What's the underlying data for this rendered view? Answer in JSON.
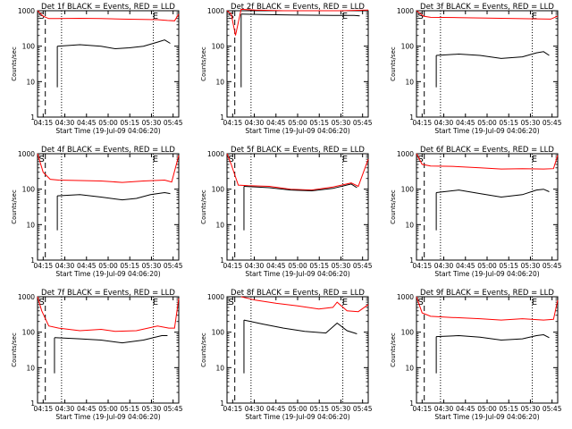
{
  "colors": {
    "events": "#000000",
    "lld": "#ff0000",
    "axis": "#000000",
    "background": "#ffffff"
  },
  "chart_data": [
    {
      "type": "line",
      "title": "Det 1f BLACK = Events, RED = LLD",
      "xlabel": "Start Time (19-Jul-09 04:06:20)",
      "ylabel": "Counts/sec",
      "yscale": "log",
      "ylim": [
        1,
        1000
      ],
      "xticks": [
        "04:15",
        "04:30",
        "04:45",
        "05:00",
        "05:15",
        "05:30",
        "05:45"
      ],
      "yticks": [
        "1",
        "10",
        "100",
        "1000"
      ],
      "markers": [
        "S",
        "E"
      ],
      "series": [
        {
          "name": "LLD",
          "color": "#ff0000",
          "x": [
            0,
            0.04,
            0.08,
            0.14,
            0.3,
            0.45,
            0.6,
            0.75,
            0.85,
            0.92,
            0.97,
            1.0
          ],
          "y": [
            1000,
            700,
            600,
            600,
            610,
            600,
            580,
            570,
            560,
            530,
            520,
            800
          ]
        },
        {
          "name": "Events",
          "color": "#000000",
          "x": [
            0.14,
            0.3,
            0.45,
            0.55,
            0.65,
            0.75,
            0.85,
            0.9,
            0.94
          ],
          "y": [
            100,
            110,
            100,
            85,
            90,
            100,
            130,
            150,
            120
          ]
        }
      ]
    },
    {
      "type": "line",
      "title": "Det 2f BLACK = Events, RED = LLD",
      "xlabel": "Start Time (19-Jul-09 04:06:20)",
      "ylabel": "Counts/sec",
      "yscale": "log",
      "ylim": [
        1,
        1000
      ],
      "xticks": [
        "04:15",
        "04:30",
        "04:45",
        "05:00",
        "05:15",
        "05:30",
        "05:45"
      ],
      "yticks": [
        "1",
        "10",
        "100",
        "1000"
      ],
      "markers": [
        "S",
        "E"
      ],
      "series": [
        {
          "name": "LLD",
          "color": "#ff0000",
          "x": [
            0,
            0.03,
            0.06,
            0.1,
            0.2,
            0.4,
            0.6,
            0.8,
            1.0
          ],
          "y": [
            1000,
            800,
            200,
            1100,
            1050,
            1000,
            1000,
            1000,
            1050
          ]
        },
        {
          "name": "Events",
          "color": "#000000",
          "x": [
            0.1,
            0.25,
            0.45,
            0.6,
            0.75,
            0.9,
            0.94
          ],
          "y": [
            800,
            780,
            760,
            750,
            740,
            740,
            720
          ]
        }
      ]
    },
    {
      "type": "line",
      "title": "Det 3f BLACK = Events, RED = LLD",
      "xlabel": "Start Time (19-Jul-09 04:06:20)",
      "ylabel": "Counts/sec",
      "yscale": "log",
      "ylim": [
        1,
        1000
      ],
      "xticks": [
        "04:15",
        "04:30",
        "04:45",
        "05:00",
        "05:15",
        "05:30",
        "05:45"
      ],
      "yticks": [
        "1",
        "10",
        "100",
        "1000"
      ],
      "markers": [
        "S",
        "E"
      ],
      "series": [
        {
          "name": "LLD",
          "color": "#ff0000",
          "x": [
            0,
            0.05,
            0.1,
            0.3,
            0.5,
            0.7,
            0.85,
            0.95,
            1.0
          ],
          "y": [
            1000,
            700,
            650,
            640,
            620,
            600,
            590,
            580,
            700
          ]
        },
        {
          "name": "Events",
          "color": "#000000",
          "x": [
            0.14,
            0.3,
            0.45,
            0.6,
            0.75,
            0.85,
            0.9,
            0.94
          ],
          "y": [
            55,
            60,
            55,
            45,
            50,
            65,
            70,
            55
          ]
        }
      ]
    },
    {
      "type": "line",
      "title": "Det 4f BLACK = Events, RED = LLD",
      "xlabel": "Start Time (19-Jul-09 04:06:20)",
      "ylabel": "Counts/sec",
      "yscale": "log",
      "ylim": [
        1,
        1000
      ],
      "xticks": [
        "04:15",
        "04:30",
        "04:45",
        "05:00",
        "05:15",
        "05:30",
        "05:45"
      ],
      "yticks": [
        "1",
        "10",
        "100",
        "1000"
      ],
      "markers": [
        "S",
        "E"
      ],
      "series": [
        {
          "name": "LLD",
          "color": "#ff0000",
          "x": [
            0,
            0.04,
            0.09,
            0.15,
            0.3,
            0.45,
            0.6,
            0.75,
            0.9,
            0.95,
            1.0
          ],
          "y": [
            1000,
            300,
            190,
            180,
            175,
            170,
            155,
            170,
            180,
            160,
            900
          ]
        },
        {
          "name": "Events",
          "color": "#000000",
          "x": [
            0.14,
            0.3,
            0.45,
            0.6,
            0.7,
            0.8,
            0.9,
            0.94
          ],
          "y": [
            65,
            70,
            60,
            50,
            55,
            70,
            80,
            75
          ]
        }
      ]
    },
    {
      "type": "line",
      "title": "Det 5f BLACK = Events, RED = LLD",
      "xlabel": "Start Time (19-Jul-09 04:06:20)",
      "ylabel": "Counts/sec",
      "yscale": "log",
      "ylim": [
        1,
        1000
      ],
      "xticks": [
        "04:15",
        "04:30",
        "04:45",
        "05:00",
        "05:15",
        "05:30",
        "05:45"
      ],
      "yticks": [
        "1",
        "10",
        "100",
        "1000"
      ],
      "markers": [
        "S",
        "E"
      ],
      "series": [
        {
          "name": "LLD",
          "color": "#ff0000",
          "x": [
            0,
            0.03,
            0.08,
            0.15,
            0.3,
            0.45,
            0.6,
            0.75,
            0.88,
            0.93,
            1.0
          ],
          "y": [
            1000,
            500,
            130,
            125,
            120,
            100,
            95,
            115,
            150,
            120,
            700
          ]
        },
        {
          "name": "Events",
          "color": "#000000",
          "x": [
            0.12,
            0.3,
            0.45,
            0.6,
            0.75,
            0.88,
            0.92
          ],
          "y": [
            120,
            110,
            95,
            90,
            105,
            140,
            110
          ]
        }
      ]
    },
    {
      "type": "line",
      "title": "Det 6f BLACK = Events, RED = LLD",
      "xlabel": "Start Time (19-Jul-09 04:06:20)",
      "ylabel": "Counts/sec",
      "yscale": "log",
      "ylim": [
        1,
        1000
      ],
      "xticks": [
        "04:15",
        "04:30",
        "04:45",
        "05:00",
        "05:15",
        "05:30",
        "05:45"
      ],
      "yticks": [
        "1",
        "10",
        "100",
        "1000"
      ],
      "markers": [
        "S",
        "E"
      ],
      "series": [
        {
          "name": "LLD",
          "color": "#ff0000",
          "x": [
            0,
            0.04,
            0.1,
            0.25,
            0.45,
            0.6,
            0.75,
            0.9,
            0.97,
            1.0
          ],
          "y": [
            1000,
            500,
            450,
            440,
            400,
            370,
            380,
            370,
            380,
            900
          ]
        },
        {
          "name": "Events",
          "color": "#000000",
          "x": [
            0.14,
            0.3,
            0.45,
            0.6,
            0.75,
            0.85,
            0.9,
            0.94
          ],
          "y": [
            80,
            95,
            75,
            60,
            70,
            95,
            100,
            85
          ]
        }
      ]
    },
    {
      "type": "line",
      "title": "Det 7f BLACK = Events, RED = LLD",
      "xlabel": "Start Time (19-Jul-09 04:06:20)",
      "ylabel": "Counts/sec",
      "yscale": "log",
      "ylim": [
        1,
        1000
      ],
      "xticks": [
        "04:15",
        "04:30",
        "04:45",
        "05:00",
        "05:15",
        "05:30",
        "05:45"
      ],
      "yticks": [
        "1",
        "10",
        "100",
        "1000"
      ],
      "markers": [
        "S",
        "E"
      ],
      "series": [
        {
          "name": "LLD",
          "color": "#ff0000",
          "x": [
            0,
            0.03,
            0.08,
            0.15,
            0.3,
            0.45,
            0.55,
            0.7,
            0.85,
            0.93,
            0.97,
            1.0
          ],
          "y": [
            1000,
            400,
            150,
            130,
            110,
            120,
            105,
            110,
            150,
            130,
            130,
            900
          ]
        },
        {
          "name": "Events",
          "color": "#000000",
          "x": [
            0.12,
            0.3,
            0.45,
            0.6,
            0.75,
            0.88,
            0.92
          ],
          "y": [
            70,
            65,
            60,
            50,
            60,
            80,
            80
          ]
        }
      ]
    },
    {
      "type": "line",
      "title": "Det 8f BLACK = Events, RED = LLD",
      "xlabel": "Start Time (19-Jul-09 04:06:20)",
      "ylabel": "Counts/sec",
      "yscale": "log",
      "ylim": [
        1,
        1000
      ],
      "xticks": [
        "04:15",
        "04:30",
        "04:45",
        "05:00",
        "05:15",
        "05:30",
        "05:45"
      ],
      "yticks": [
        "1",
        "10",
        "100",
        "1000"
      ],
      "markers": [
        "S",
        "E"
      ],
      "series": [
        {
          "name": "LLD",
          "color": "#ff0000",
          "x": [
            0.1,
            0.2,
            0.35,
            0.5,
            0.65,
            0.75,
            0.78,
            0.85,
            0.93,
            1.0
          ],
          "y": [
            1000,
            800,
            650,
            550,
            450,
            500,
            700,
            400,
            380,
            600
          ]
        },
        {
          "name": "Events",
          "color": "#000000",
          "x": [
            0.12,
            0.25,
            0.4,
            0.55,
            0.7,
            0.78,
            0.85,
            0.92
          ],
          "y": [
            220,
            170,
            130,
            105,
            95,
            180,
            110,
            90
          ]
        }
      ]
    },
    {
      "type": "line",
      "title": "Det 9f BLACK = Events, RED = LLD",
      "xlabel": "Start Time (19-Jul-09 04:06:20)",
      "ylabel": "Counts/sec",
      "yscale": "log",
      "ylim": [
        1,
        1000
      ],
      "xticks": [
        "04:15",
        "04:30",
        "04:45",
        "05:00",
        "05:15",
        "05:30",
        "05:45"
      ],
      "yticks": [
        "1",
        "10",
        "100",
        "1000"
      ],
      "markers": [
        "S",
        "E"
      ],
      "series": [
        {
          "name": "LLD",
          "color": "#ff0000",
          "x": [
            0,
            0.04,
            0.1,
            0.25,
            0.45,
            0.6,
            0.75,
            0.9,
            0.97,
            1.0
          ],
          "y": [
            1000,
            350,
            280,
            260,
            240,
            220,
            240,
            220,
            230,
            800
          ]
        },
        {
          "name": "Events",
          "color": "#000000",
          "x": [
            0.14,
            0.3,
            0.45,
            0.6,
            0.75,
            0.85,
            0.9,
            0.94
          ],
          "y": [
            75,
            80,
            72,
            60,
            65,
            80,
            85,
            70
          ]
        }
      ]
    }
  ]
}
